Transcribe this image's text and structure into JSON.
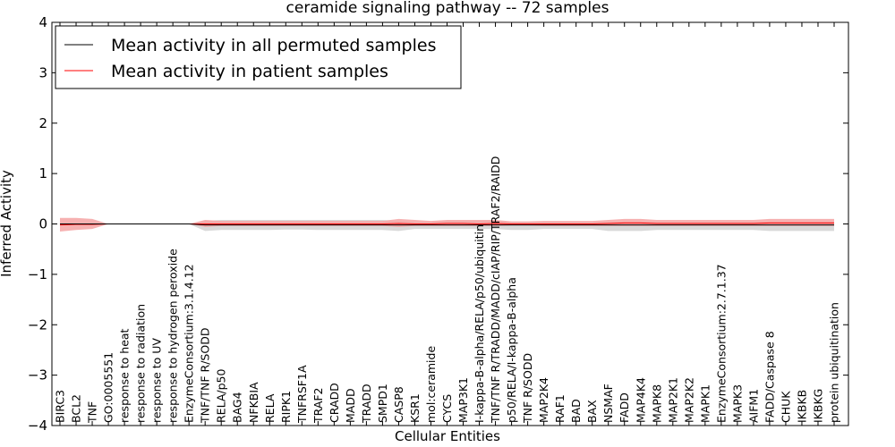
{
  "chart_data": {
    "type": "line",
    "title": "ceramide signaling pathway -- 72 samples",
    "xlabel": "Cellular Entities",
    "ylabel": "Inferred Activity",
    "ylim": [
      -4,
      4
    ],
    "yticks": [
      -4,
      -3,
      -2,
      -1,
      0,
      1,
      2,
      3,
      4
    ],
    "ytick_labels": [
      "−4",
      "−3",
      "−2",
      "−1",
      "0",
      "1",
      "2",
      "3",
      "4"
    ],
    "grid": false,
    "legend": {
      "position": "top-left",
      "entries": [
        {
          "label": "Mean activity in all permuted samples",
          "color": "#000000"
        },
        {
          "label": "Mean activity in patient samples",
          "color": "#ff0000"
        }
      ]
    },
    "categories": [
      "BIRC3",
      "BCL2",
      "TNF",
      "GO:0005551",
      "response to heat",
      "response to radiation",
      "response to UV",
      "response to hydrogen peroxide",
      "EnzymeConsortium:3.1.4.12",
      "TNF/TNF R/SODD",
      "RELA/p50",
      "BAG4",
      "NFKBIA",
      "RELA",
      "RIPK1",
      "TNFRSF1A",
      "TRAF2",
      "CRADD",
      "MADD",
      "TRADD",
      "SMPD1",
      "CASP8",
      "KSR1",
      "mol:ceramide",
      "CYCS",
      "MAP3K1",
      "I-kappa-B-alpha/RELA/p50/ubiquitin",
      "TNF/TNF R/TRADD/MADD/cIAP/RIP/TRAF2/RAIDD",
      "p50/RELA/I-kappa-B-alpha",
      "TNF R/SODD",
      "MAP2K4",
      "RAF1",
      "BAD",
      "BAX",
      "NSMAF",
      "FADD",
      "MAP4K4",
      "MAPK8",
      "MAP2K1",
      "MAP2K2",
      "MAPK1",
      "EnzymeConsortium:2.7.1.37",
      "MAPK3",
      "AIFM1",
      "FADD/Caspase 8",
      "CHUK",
      "IKBKB",
      "IKBKG",
      "protein ubiquitination"
    ],
    "series": [
      {
        "name": "Mean activity in all permuted samples",
        "color": "#000000",
        "band_color": "#cccccc",
        "values": [
          0,
          0,
          0,
          0,
          0,
          0,
          0,
          0,
          0,
          -0.02,
          -0.02,
          -0.02,
          -0.02,
          -0.02,
          -0.02,
          -0.02,
          -0.02,
          -0.02,
          -0.02,
          -0.02,
          -0.02,
          -0.02,
          -0.02,
          -0.02,
          -0.02,
          -0.02,
          -0.02,
          -0.02,
          -0.02,
          -0.02,
          -0.02,
          -0.02,
          -0.02,
          -0.02,
          -0.02,
          -0.02,
          -0.02,
          -0.02,
          -0.02,
          -0.02,
          -0.02,
          -0.02,
          -0.02,
          -0.02,
          -0.02,
          -0.02,
          -0.02,
          -0.02,
          -0.02
        ],
        "lower": [
          0,
          0,
          0,
          0,
          0,
          0,
          0,
          0,
          0,
          -0.14,
          -0.12,
          -0.12,
          -0.12,
          -0.12,
          -0.11,
          -0.11,
          -0.12,
          -0.12,
          -0.12,
          -0.12,
          -0.12,
          -0.14,
          -0.1,
          -0.1,
          -0.1,
          -0.1,
          -0.1,
          -0.1,
          -0.12,
          -0.12,
          -0.1,
          -0.1,
          -0.1,
          -0.1,
          -0.14,
          -0.14,
          -0.14,
          -0.12,
          -0.12,
          -0.12,
          -0.12,
          -0.12,
          -0.12,
          -0.12,
          -0.14,
          -0.14,
          -0.14,
          -0.14,
          -0.14
        ],
        "upper": [
          0,
          0,
          0,
          0,
          0,
          0,
          0,
          0,
          0,
          0.06,
          0.08,
          0.08,
          0.08,
          0.08,
          0.08,
          0.08,
          0.08,
          0.08,
          0.08,
          0.08,
          0.08,
          0.06,
          0.04,
          0.04,
          0.06,
          0.06,
          0.06,
          0.06,
          0.04,
          0.04,
          0.04,
          0.04,
          0.04,
          0.04,
          0.04,
          0.04,
          0.04,
          0.04,
          0.04,
          0.04,
          0.04,
          0.04,
          0.04,
          0.04,
          0.04,
          0.04,
          0.04,
          0.04,
          0.04
        ]
      },
      {
        "name": "Mean activity in patient samples",
        "color": "#ff0000",
        "band_color": "#f4a3a3",
        "values": [
          -0.02,
          -0.01,
          -0.01,
          0,
          0,
          0,
          0,
          0,
          0,
          0,
          0,
          0,
          0,
          0,
          0,
          0,
          0,
          0,
          0,
          0,
          0,
          0.01,
          0,
          0,
          0.01,
          0.01,
          0,
          0.01,
          0,
          0,
          0,
          0,
          0,
          0,
          0.01,
          0.02,
          0.02,
          0.01,
          0.01,
          0.01,
          0.01,
          0.01,
          0.01,
          0.01,
          0.02,
          0.02,
          0.02,
          0.02,
          0.02
        ],
        "lower": [
          -0.15,
          -0.12,
          -0.1,
          0,
          0,
          0,
          0,
          0,
          0,
          -0.06,
          -0.04,
          -0.04,
          -0.04,
          -0.04,
          -0.04,
          -0.04,
          -0.04,
          -0.04,
          -0.04,
          -0.04,
          -0.04,
          -0.06,
          -0.04,
          -0.04,
          -0.04,
          -0.04,
          -0.04,
          -0.04,
          -0.03,
          -0.03,
          -0.04,
          -0.04,
          -0.04,
          -0.04,
          -0.04,
          -0.04,
          -0.04,
          -0.04,
          -0.04,
          -0.04,
          -0.04,
          -0.04,
          -0.04,
          -0.04,
          -0.04,
          -0.04,
          -0.04,
          -0.04,
          -0.04
        ],
        "upper": [
          0.12,
          0.12,
          0.1,
          0,
          0,
          0,
          0,
          0,
          0,
          0.08,
          0.06,
          0.06,
          0.06,
          0.06,
          0.06,
          0.06,
          0.06,
          0.06,
          0.06,
          0.06,
          0.06,
          0.1,
          0.08,
          0.06,
          0.08,
          0.08,
          0.08,
          0.08,
          0.05,
          0.05,
          0.06,
          0.06,
          0.06,
          0.06,
          0.08,
          0.1,
          0.1,
          0.08,
          0.08,
          0.08,
          0.08,
          0.08,
          0.08,
          0.08,
          0.1,
          0.1,
          0.1,
          0.1,
          0.1
        ]
      }
    ]
  }
}
